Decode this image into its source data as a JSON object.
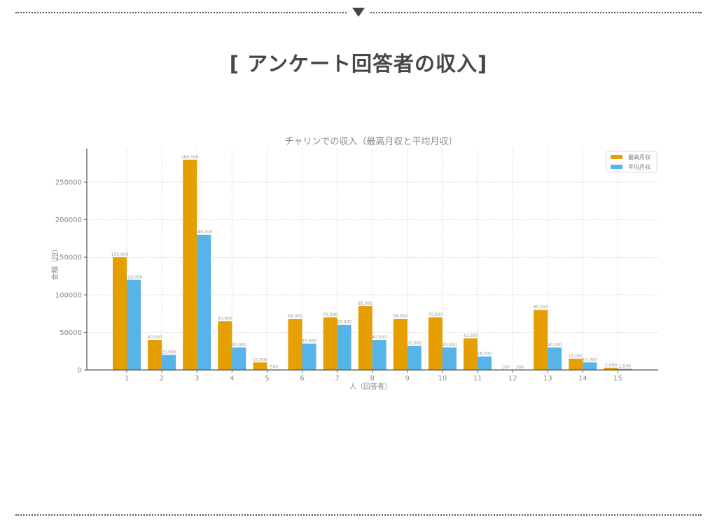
{
  "page": {
    "title": "[ アンケート回答者の収入]"
  },
  "colors": {
    "max_income": "#E69F00",
    "avg_income": "#56B4E9",
    "divider": "#555555",
    "title_text": "#4a4444"
  },
  "chart_data": {
    "type": "bar",
    "title": "チャリンでの収入（最高月収と平均月収）",
    "xlabel": "人（回答者）",
    "ylabel": "金額（円）",
    "categories": [
      "1",
      "2",
      "3",
      "4",
      "5",
      "6",
      "7",
      "8",
      "9",
      "10",
      "11",
      "12",
      "13",
      "14",
      "15"
    ],
    "series": [
      {
        "name": "最高月収",
        "color": "#E69F00",
        "values": [
          150000,
          40000,
          280000,
          65000,
          10000,
          68000,
          70000,
          85000,
          68000,
          70000,
          42000,
          100,
          80000,
          15000,
          3000
        ],
        "labels": [
          "150,000",
          "40,000",
          "280,000",
          "65,000",
          "10,000",
          "68,000",
          "70,000",
          "85,000",
          "68,000",
          "70,000",
          "42,000",
          "100",
          "80,000",
          "15,000",
          "3,000"
        ]
      },
      {
        "name": "平均月収",
        "color": "#56B4E9",
        "values": [
          120000,
          20000,
          180000,
          30000,
          500,
          35000,
          60000,
          40000,
          32000,
          30000,
          18000,
          100,
          30000,
          10000,
          1500
        ],
        "labels": [
          "120,000",
          "20,000",
          "180,000",
          "30,000",
          "500",
          "35,000",
          "60,000",
          "40,000",
          "32,000",
          "30,000",
          "18,000",
          "100",
          "30,000",
          "10,000",
          "1,500"
        ]
      }
    ],
    "yticks": [
      0,
      50000,
      100000,
      150000,
      200000,
      250000
    ],
    "ytick_labels": [
      "0",
      "50000",
      "100000",
      "150000",
      "200000",
      "250000"
    ],
    "ylim": [
      0,
      294000
    ],
    "grid": true,
    "legend_position": "upper right"
  }
}
